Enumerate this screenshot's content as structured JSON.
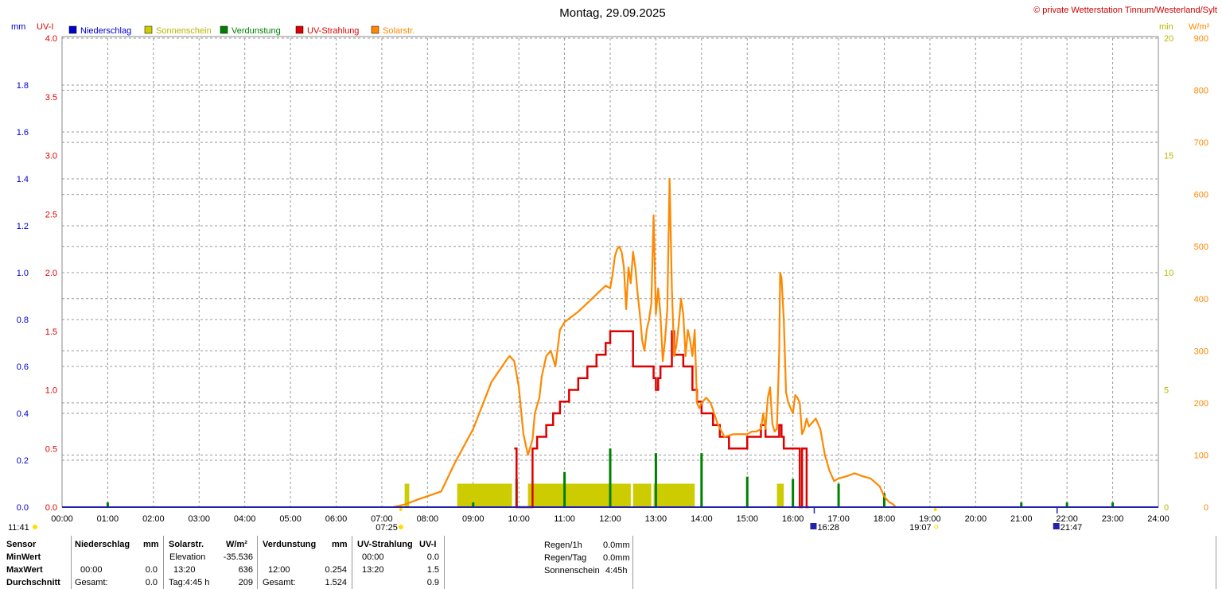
{
  "header": {
    "title": "Montag, 29.09.2025",
    "copyright": "© private Wetterstation Tinnum/Westerland/Sylt"
  },
  "colors": {
    "precip": "#0000cc",
    "sunshine": "#cccc00",
    "evap": "#008000",
    "uv": "#dd0000",
    "solar": "#ff8800",
    "grid": "#999999"
  },
  "chart_data": {
    "type": "line",
    "title": "Montag, 29.09.2025",
    "legend": [
      "Niederschlag",
      "Sonnenschein",
      "Verdunstung",
      "UV-Strahlung",
      "Solarstr."
    ],
    "legend_position": "top-left",
    "grid": true,
    "x_ticks": [
      "00:00",
      "01:00",
      "02:00",
      "03:00",
      "04:00",
      "05:00",
      "06:00",
      "07:00",
      "08:00",
      "09:00",
      "10:00",
      "11:00",
      "12:00",
      "13:00",
      "14:00",
      "15:00",
      "16:00",
      "17:00",
      "18:00",
      "19:00",
      "20:00",
      "21:00",
      "22:00",
      "23:00",
      "24:00"
    ],
    "xlim": [
      0,
      24
    ],
    "axes": {
      "precip": {
        "label": "mm",
        "ylim": [
          0,
          2.0
        ],
        "ticks": [
          "0.0",
          "0.2",
          "0.4",
          "0.6",
          "0.8",
          "1.0",
          "1.2",
          "1.4",
          "1.6",
          "1.8"
        ]
      },
      "uv": {
        "label": "UV-I",
        "ylim": [
          0,
          4.0
        ],
        "ticks": [
          "0.0",
          "0.5",
          "1.0",
          "1.5",
          "2.0",
          "2.5",
          "3.0",
          "3.5",
          "4.0"
        ]
      },
      "sunshine": {
        "label": "min",
        "ylim": [
          0,
          20
        ],
        "ticks": [
          "0",
          "5",
          "10",
          "15",
          "20"
        ]
      },
      "solar": {
        "label": "W/m²",
        "ylim": [
          0,
          900
        ],
        "ticks": [
          "0",
          "100",
          "200",
          "300",
          "400",
          "500",
          "600",
          "700",
          "800",
          "900"
        ]
      }
    },
    "markers": {
      "sunrise": "07:25",
      "sunset": "19:07",
      "moonrise": "16:28",
      "moonset": "21:47",
      "left_time": "11:41"
    },
    "series": [
      {
        "name": "Solarstr.",
        "axis": "solar",
        "x": [
          7.25,
          7.5,
          7.8,
          8.3,
          8.6,
          9.0,
          9.4,
          9.75,
          9.8,
          9.9,
          10.0,
          10.1,
          10.2,
          10.3,
          10.35,
          10.45,
          10.5,
          10.6,
          10.7,
          10.8,
          10.9,
          11.0,
          11.3,
          11.6,
          11.9,
          12.0,
          12.05,
          12.1,
          12.15,
          12.2,
          12.25,
          12.3,
          12.35,
          12.4,
          12.45,
          12.5,
          12.55,
          12.6,
          12.65,
          12.7,
          12.75,
          12.8,
          12.85,
          12.9,
          12.95,
          13.0,
          13.05,
          13.1,
          13.15,
          13.2,
          13.25,
          13.3,
          13.35,
          13.4,
          13.45,
          13.5,
          13.55,
          13.6,
          13.65,
          13.7,
          13.75,
          13.8,
          13.85,
          13.9,
          13.95,
          14.0,
          14.1,
          14.2,
          14.35,
          14.5,
          14.7,
          14.9,
          15.0,
          15.1,
          15.2,
          15.3,
          15.35,
          15.4,
          15.45,
          15.5,
          15.55,
          15.6,
          15.65,
          15.7,
          15.72,
          15.75,
          15.8,
          15.85,
          15.9,
          16.0,
          16.05,
          16.1,
          16.15,
          16.2,
          16.25,
          16.3,
          16.35,
          16.4,
          16.5,
          16.6,
          16.7,
          16.8,
          16.9,
          17.0,
          17.2,
          17.35,
          17.5,
          17.7,
          17.9,
          18.0,
          18.1,
          18.2,
          18.25
        ],
        "y": [
          0,
          5,
          15,
          30,
          85,
          150,
          240,
          285,
          290,
          280,
          230,
          140,
          100,
          130,
          180,
          210,
          250,
          290,
          300,
          270,
          340,
          355,
          375,
          400,
          425,
          420,
          445,
          480,
          495,
          500,
          490,
          460,
          380,
          460,
          430,
          490,
          460,
          410,
          370,
          320,
          300,
          340,
          360,
          390,
          560,
          370,
          420,
          370,
          280,
          320,
          380,
          630,
          420,
          290,
          310,
          350,
          400,
          370,
          290,
          340,
          320,
          290,
          340,
          200,
          190,
          200,
          210,
          200,
          160,
          135,
          140,
          140,
          140,
          145,
          145,
          150,
          180,
          150,
          210,
          230,
          160,
          145,
          150,
          300,
          450,
          440,
          360,
          220,
          200,
          180,
          215,
          210,
          200,
          140,
          150,
          170,
          155,
          160,
          170,
          150,
          100,
          70,
          50,
          55,
          60,
          65,
          60,
          55,
          40,
          20,
          10,
          5,
          0
        ]
      },
      {
        "name": "UV-Strahlung",
        "axis": "uv",
        "x": [
          9.9,
          9.95,
          10.0,
          10.1,
          10.2,
          10.25,
          10.3,
          10.4,
          10.5,
          10.6,
          10.75,
          10.9,
          11.1,
          11.3,
          11.5,
          11.7,
          11.9,
          12.0,
          12.2,
          12.4,
          12.5,
          12.7,
          12.9,
          12.95,
          13.0,
          13.05,
          13.1,
          13.3,
          13.35,
          13.4,
          13.5,
          13.6,
          13.8,
          13.9,
          14.0,
          14.1,
          14.25,
          14.4,
          14.6,
          14.8,
          15.0,
          15.2,
          15.3,
          15.4,
          15.6,
          15.7,
          15.72,
          15.75,
          15.8,
          16.0,
          16.1,
          16.15,
          16.2,
          16.3,
          16.35
        ],
        "y": [
          0.5,
          0,
          0,
          0,
          0,
          0,
          0.5,
          0.6,
          0.6,
          0.7,
          0.8,
          0.9,
          1.0,
          1.1,
          1.2,
          1.3,
          1.4,
          1.5,
          1.5,
          1.5,
          1.2,
          1.2,
          1.2,
          1.1,
          1.0,
          1.1,
          1.2,
          1.2,
          1.5,
          1.3,
          1.3,
          1.2,
          1.0,
          0.9,
          0.8,
          0.8,
          0.7,
          0.6,
          0.5,
          0.5,
          0.6,
          0.6,
          0.7,
          0.6,
          0.6,
          0.7,
          0.7,
          0.6,
          0.5,
          0.5,
          0.5,
          0,
          0.5,
          0,
          0
        ]
      },
      {
        "name": "Sonnenschein",
        "axis": "sunshine",
        "bars": [
          {
            "x0": 7.5,
            "x1": 7.6,
            "min": 1.0
          },
          {
            "x0": 8.65,
            "x1": 9.85,
            "min": 1.0
          },
          {
            "x0": 10.2,
            "x1": 12.45,
            "min": 1.0
          },
          {
            "x0": 12.5,
            "x1": 12.9,
            "min": 1.0
          },
          {
            "x0": 12.95,
            "x1": 13.85,
            "min": 1.0
          },
          {
            "x0": 15.65,
            "x1": 15.8,
            "min": 1.0
          }
        ]
      },
      {
        "name": "Verdunstung",
        "axis": "precip",
        "spikes": [
          {
            "x": 1.0,
            "mm": 0.02
          },
          {
            "x": 9.0,
            "mm": 0.02
          },
          {
            "x": 9.95,
            "mm": 0.12
          },
          {
            "x": 11.0,
            "mm": 0.15
          },
          {
            "x": 12.0,
            "mm": 0.25
          },
          {
            "x": 13.0,
            "mm": 0.23
          },
          {
            "x": 14.0,
            "mm": 0.23
          },
          {
            "x": 15.0,
            "mm": 0.13
          },
          {
            "x": 16.0,
            "mm": 0.12
          },
          {
            "x": 17.0,
            "mm": 0.1
          },
          {
            "x": 18.0,
            "mm": 0.06
          },
          {
            "x": 21.0,
            "mm": 0.02
          },
          {
            "x": 22.0,
            "mm": 0.02
          },
          {
            "x": 23.0,
            "mm": 0.02
          }
        ]
      },
      {
        "name": "Niederschlag",
        "axis": "precip",
        "values": []
      }
    ]
  },
  "stats": {
    "h_sensor": "Sensor",
    "h_precip": "Niederschlag",
    "h_precip_unit": "mm",
    "h_solar": "Solarstr.",
    "h_solar_unit": "W/m²",
    "h_evap": "Verdunstung",
    "h_evap_unit": "mm",
    "h_uv": "UV-Strahlung",
    "h_uv_unit": "UV-I",
    "r_min": "MinWert",
    "r_max": "MaxWert",
    "r_avg": "Durchschnitt",
    "solar_min_label": "Elevation",
    "solar_min_val": "-35.536",
    "uv_min_time": "00:00",
    "uv_min_val": "0.0",
    "precip_max_time": "00:00",
    "precip_max_val": "0.0",
    "solar_max_time": "13:20",
    "solar_max_val": "636",
    "evap_max_time": "12:00",
    "evap_max_val": "0.254",
    "uv_max_time": "13:20",
    "uv_max_val": "1.5",
    "precip_avg_label": "Gesamt:",
    "precip_avg_val": "0.0",
    "solar_avg_label": "Tag:4:45 h",
    "solar_avg_val": "209",
    "evap_avg_label": "Gesamt:",
    "evap_avg_val": "1.524",
    "uv_avg_val": "0.9",
    "rain1h_label": "Regen/1h",
    "rain1h_val": "0.0mm",
    "rainday_label": "Regen/Tag",
    "rainday_val": "0.0mm",
    "sun_label": "Sonnenschein",
    "sun_val": "4:45h"
  }
}
